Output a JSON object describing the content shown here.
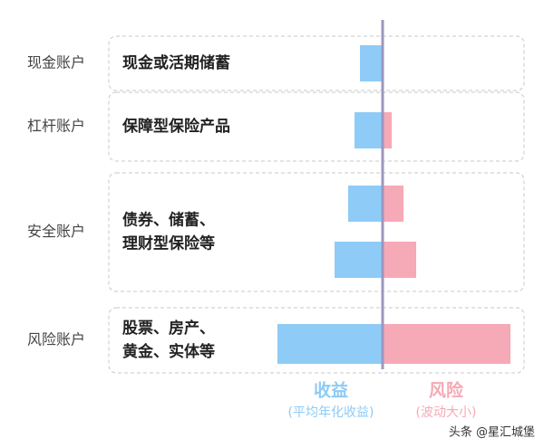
{
  "chart_data": {
    "type": "diverging-bar",
    "series": [
      {
        "name": "收益",
        "subtitle": "(平均年化收益)",
        "color": "#8ecbf6"
      },
      {
        "name": "风险",
        "subtitle": "(波动大小)",
        "color": "#f6a9b6"
      }
    ],
    "rows": [
      {
        "account": "现金账户",
        "desc": [
          "现金或活期储蓄"
        ],
        "bars": [
          {
            "return": 25,
            "risk": 0
          }
        ]
      },
      {
        "account": "杠杆账户",
        "desc": [
          "保障型保险产品"
        ],
        "bars": [
          {
            "return": 31,
            "risk": 10
          }
        ]
      },
      {
        "account": "安全账户",
        "desc": [
          "债券、储蓄、",
          "理财型保险等"
        ],
        "bars": [
          {
            "return": 38,
            "risk": 23
          },
          {
            "return": 53,
            "risk": 37
          }
        ]
      },
      {
        "account": "风险账户",
        "desc": [
          "股票、房产、",
          "黄金、实体等"
        ],
        "bars": [
          {
            "return": 116,
            "risk": 141
          }
        ]
      }
    ],
    "watermark": "头条 @星汇城堡"
  }
}
